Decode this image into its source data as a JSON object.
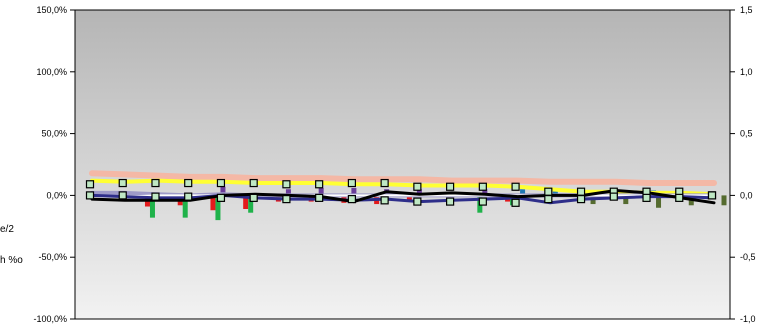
{
  "chart_data": {
    "type": "bar",
    "title": "",
    "grid": false,
    "left_axis": {
      "ylim": [
        -100,
        150
      ],
      "ticks": [
        "150,0%",
        "100,0%",
        "50,0%",
        "0,0%",
        "-50,0%",
        "-100,0%"
      ],
      "tick_values": [
        150,
        100,
        50,
        0,
        -50,
        -100
      ]
    },
    "right_axis": {
      "ylim": [
        -1.0,
        1.5
      ],
      "ticks": [
        "1,5",
        "1,0",
        "0,5",
        "0,0",
        "-0,5",
        "-1,0"
      ],
      "tick_values": [
        1.5,
        1.0,
        0.5,
        0.0,
        -0.5,
        -1.0
      ]
    },
    "side_labels": [
      "e/2",
      "h %o"
    ],
    "n_periods": 20,
    "bar_series": [
      {
        "color": "#e31a1c",
        "values": [
          0,
          0,
          -9,
          -8,
          -12,
          -11,
          -5,
          -5,
          -6,
          -7,
          -5,
          0,
          0,
          -5,
          0,
          0,
          0,
          0,
          0,
          0
        ]
      },
      {
        "color": "#1fb24a",
        "values": [
          0,
          0,
          -18,
          -18,
          -20,
          -14,
          0,
          0,
          0,
          0,
          0,
          0,
          -14,
          -8,
          0,
          0,
          0,
          0,
          0,
          0
        ]
      },
      {
        "color": "#6a3d9a",
        "values": [
          0,
          0,
          0,
          0,
          7,
          0,
          5,
          6,
          6,
          5,
          5,
          0,
          5,
          0,
          0,
          0,
          0,
          0,
          0,
          0
        ]
      },
      {
        "color": "#1f78b4",
        "values": [
          0,
          0,
          0,
          0,
          0,
          0,
          0,
          0,
          0,
          0,
          0,
          0,
          0,
          5,
          5,
          0,
          4,
          4,
          0,
          0
        ]
      },
      {
        "color": "#556b2f",
        "values": [
          0,
          0,
          0,
          0,
          0,
          0,
          0,
          0,
          0,
          0,
          0,
          0,
          0,
          0,
          0,
          -7,
          -7,
          -10,
          -8,
          -8
        ]
      }
    ],
    "line_series": [
      {
        "color": "#f4b8a6",
        "width": 6,
        "values": [
          18,
          17,
          16,
          15,
          15,
          14,
          14,
          14,
          13,
          13,
          13,
          12,
          12,
          12,
          11,
          11,
          11,
          10,
          10,
          10
        ]
      },
      {
        "color": "#ffff33",
        "width": 4,
        "values": [
          12,
          11,
          12,
          11,
          11,
          10,
          10,
          10,
          9,
          9,
          8,
          8,
          8,
          7,
          5,
          3,
          3,
          2,
          2,
          1
        ]
      },
      {
        "color": "#9e9ac8",
        "width": 4,
        "values": [
          2,
          2,
          1,
          0,
          1,
          0,
          0,
          0,
          0,
          0,
          0,
          0,
          0,
          0,
          0,
          0,
          0,
          0,
          0,
          0
        ]
      },
      {
        "color": "#ffffff",
        "width": 2,
        "values": [
          -1,
          -1,
          0,
          0,
          0,
          0,
          0,
          0,
          0,
          0,
          0,
          0,
          0,
          0,
          0,
          0,
          0,
          0,
          0,
          0
        ]
      },
      {
        "color": "#2e2e8a",
        "width": 3,
        "values": [
          0,
          -1,
          -2,
          -2,
          0,
          -2,
          -3,
          -3,
          -4,
          -3,
          -5,
          -4,
          -3,
          -2,
          -6,
          -3,
          -2,
          -1,
          -1,
          -2
        ]
      },
      {
        "color": "#000000",
        "width": 3,
        "values": [
          -3,
          -4,
          -4,
          -4,
          0,
          1,
          0,
          -1,
          -5,
          3,
          1,
          2,
          1,
          -1,
          0,
          0,
          4,
          2,
          -2,
          -6
        ]
      }
    ],
    "marker_series": [
      {
        "color": "#bfe8c4",
        "values": [
          9,
          10,
          10,
          10,
          10,
          10,
          9,
          9,
          10,
          10,
          7,
          7,
          7,
          7,
          3,
          3,
          3,
          3,
          3,
          0
        ]
      },
      {
        "color": "#bfe8c4",
        "values": [
          0,
          0,
          -1,
          -1,
          -2,
          -2,
          -3,
          -2,
          -3,
          -4,
          -5,
          -5,
          -5,
          -6,
          -3,
          -3,
          -1,
          -2,
          -2,
          0
        ]
      }
    ]
  }
}
